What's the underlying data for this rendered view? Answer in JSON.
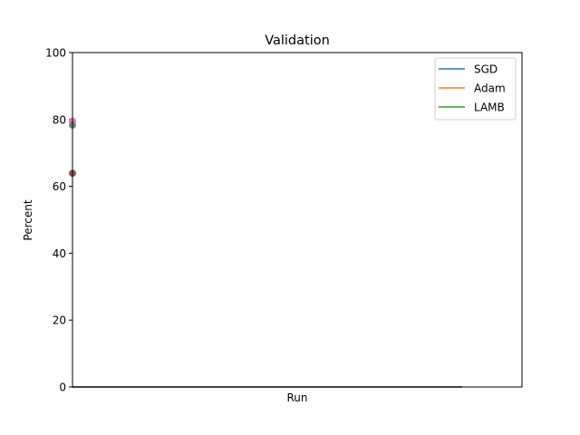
{
  "chart_data": {
    "type": "line",
    "title": "Validation",
    "xlabel": "Run",
    "ylabel": "Percent",
    "ylim": [
      0,
      100
    ],
    "yticks": [
      0,
      20,
      40,
      60,
      80,
      100
    ],
    "xticks_shown": false,
    "grid": false,
    "legend_position": "top-right",
    "series": [
      {
        "name": "SGD",
        "color": "#1f77b4",
        "x": [
          0,
          1
        ],
        "y": [
          0,
          0
        ]
      },
      {
        "name": "Adam",
        "color": "#ff7f0e",
        "x": [
          0,
          1
        ],
        "y": [
          0,
          0
        ]
      },
      {
        "name": "LAMB",
        "color": "#2ca02c",
        "x": [
          0,
          1
        ],
        "y": [
          0,
          0
        ]
      },
      {
        "color": "#9467bd",
        "x": [
          0,
          1
        ],
        "y": [
          0,
          0
        ]
      }
    ],
    "points": [
      {
        "x": 0,
        "y": 79.5,
        "color": "#e377c2"
      },
      {
        "x": 0,
        "y": 78.3,
        "color": "#7f7f7f"
      },
      {
        "x": 0,
        "y": 63.9,
        "color": "#8c564b"
      }
    ]
  }
}
